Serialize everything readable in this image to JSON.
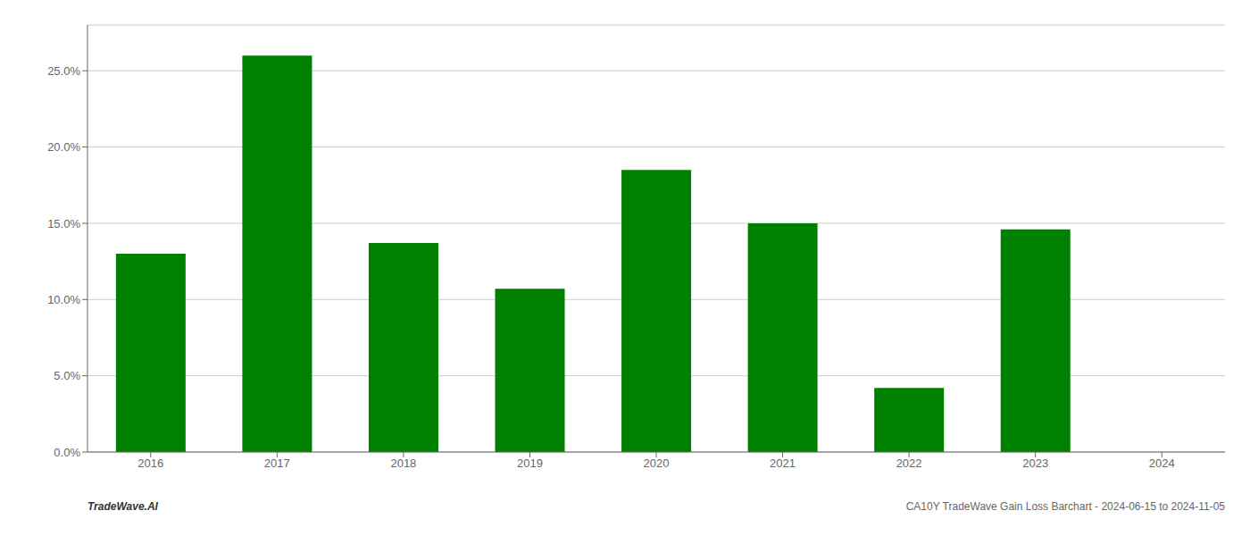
{
  "chart_data": {
    "type": "bar",
    "categories": [
      "2016",
      "2017",
      "2018",
      "2019",
      "2020",
      "2021",
      "2022",
      "2023",
      "2024"
    ],
    "values": [
      13.0,
      26.0,
      13.7,
      10.7,
      18.5,
      15.0,
      4.2,
      14.6,
      null
    ],
    "color": "#008000",
    "ylim": [
      0,
      28
    ],
    "yticks": [
      {
        "value": 0.0,
        "label": "0.0%"
      },
      {
        "value": 5.0,
        "label": "5.0%"
      },
      {
        "value": 10.0,
        "label": "10.0%"
      },
      {
        "value": 15.0,
        "label": "15.0%"
      },
      {
        "value": 20.0,
        "label": "20.0%"
      },
      {
        "value": 25.0,
        "label": "25.0%"
      }
    ],
    "grid": true,
    "annotations": [
      "TradeWave.AI",
      "CA10Y TradeWave Gain Loss Barchart - 2024-06-15 to 2024-11-05"
    ]
  }
}
